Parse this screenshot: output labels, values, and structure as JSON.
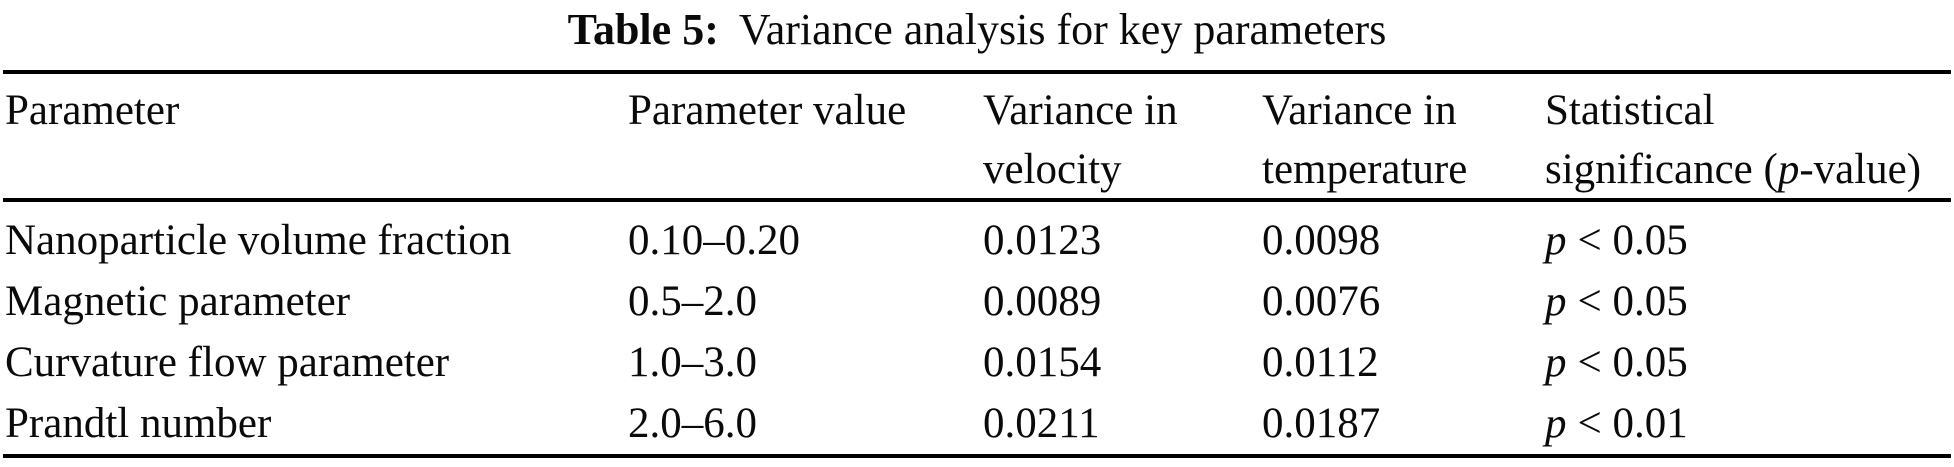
{
  "colors": {
    "background": "#ffffff",
    "text": "#0a0a0a",
    "rule": "#000000"
  },
  "caption": {
    "label": "Table 5:",
    "title": "Variance analysis for key parameters"
  },
  "table": {
    "headers": {
      "parameter": "Parameter",
      "parameter_value": "Parameter value",
      "variance_velocity_line1": "Variance in",
      "variance_velocity_line2": "velocity",
      "variance_temperature_line1": "Variance in",
      "variance_temperature_line2": "temperature",
      "significance_line1": "Statistical",
      "significance_line2_prefix": "significance (",
      "significance_line2_italic": "p",
      "significance_line2_suffix": "-value)"
    },
    "rows": [
      {
        "parameter": "Nanoparticle volume fraction",
        "value": "0.10–0.20",
        "variance_velocity": "0.0123",
        "variance_temperature": "0.0098",
        "significance_symbol": "p",
        "significance_value": "< 0.05"
      },
      {
        "parameter": "Magnetic parameter",
        "value": "0.5–2.0",
        "variance_velocity": "0.0089",
        "variance_temperature": "0.0076",
        "significance_symbol": "p",
        "significance_value": "< 0.05"
      },
      {
        "parameter": "Curvature flow parameter",
        "value": "1.0–3.0",
        "variance_velocity": "0.0154",
        "variance_temperature": "0.0112",
        "significance_symbol": "p",
        "significance_value": "< 0.05"
      },
      {
        "parameter": "Prandtl number",
        "value": "2.0–6.0",
        "variance_velocity": "0.0211",
        "variance_temperature": "0.0187",
        "significance_symbol": "p",
        "significance_value": "< 0.01"
      }
    ]
  },
  "chart_data": {
    "type": "table",
    "title": "Table 5: Variance analysis for key parameters",
    "columns": [
      "Parameter",
      "Parameter value",
      "Variance in velocity",
      "Variance in temperature",
      "Statistical significance (p-value)"
    ],
    "rows": [
      [
        "Nanoparticle volume fraction",
        "0.10–0.20",
        0.0123,
        0.0098,
        "p < 0.05"
      ],
      [
        "Magnetic parameter",
        "0.5–2.0",
        0.0089,
        0.0076,
        "p < 0.05"
      ],
      [
        "Curvature flow parameter",
        "1.0–3.0",
        0.0154,
        0.0112,
        "p < 0.05"
      ],
      [
        "Prandtl number",
        "2.0–6.0",
        0.0211,
        0.0187,
        "p < 0.01"
      ]
    ]
  }
}
